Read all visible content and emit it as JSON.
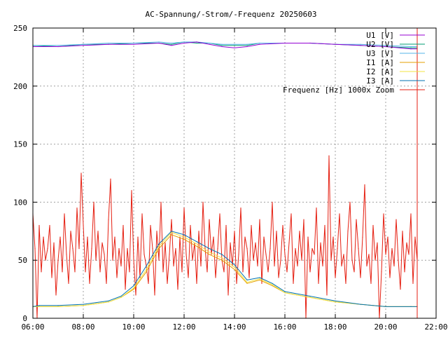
{
  "chart_data": {
    "type": "line",
    "title": "AC-Spannung/-Strom/-Frequenz 20250603",
    "xlabel": "",
    "ylabel": "",
    "xlim": [
      "06:00",
      "22:00"
    ],
    "ylim": [
      0,
      250
    ],
    "x_tick_labels": [
      "06:00",
      "08:00",
      "10:00",
      "12:00",
      "14:00",
      "16:00",
      "18:00",
      "20:00",
      "22:00"
    ],
    "y_tick_labels": [
      "0",
      "50",
      "100",
      "150",
      "200",
      "250"
    ],
    "grid": true,
    "legend_position": "top-right",
    "data_end": "21:15",
    "series": [
      {
        "name": "U1 [V]",
        "color": "#9400d3",
        "x": [
          "06:00",
          "07:00",
          "08:00",
          "09:00",
          "10:00",
          "11:00",
          "11:30",
          "12:00",
          "12:30",
          "13:00",
          "13:30",
          "14:00",
          "14:30",
          "15:00",
          "16:00",
          "17:00",
          "18:00",
          "19:00",
          "20:00",
          "21:00",
          "21:15"
        ],
        "values": [
          234,
          234,
          235,
          236,
          236,
          237,
          235,
          237,
          238,
          236,
          234,
          233,
          234,
          236,
          237,
          237,
          236,
          235,
          234,
          232,
          232
        ]
      },
      {
        "name": "U2 [V]",
        "color": "#009e73",
        "x": [
          "06:00",
          "07:00",
          "08:00",
          "09:00",
          "10:00",
          "11:00",
          "11:30",
          "12:00",
          "12:30",
          "13:00",
          "13:30",
          "14:00",
          "14:30",
          "15:00",
          "16:00",
          "17:00",
          "18:00",
          "19:00",
          "20:00",
          "21:00",
          "21:15"
        ],
        "values": [
          235,
          234,
          236,
          236,
          237,
          237,
          236,
          238,
          237,
          237,
          235,
          235,
          235,
          237,
          237,
          237,
          236,
          235,
          234,
          233,
          233
        ]
      },
      {
        "name": "U3 [V]",
        "color": "#56b4e9",
        "x": [
          "06:00",
          "07:00",
          "08:00",
          "09:00",
          "10:00",
          "11:00",
          "11:30",
          "12:00",
          "12:30",
          "13:00",
          "13:30",
          "14:00",
          "14:30",
          "15:00",
          "16:00",
          "17:00",
          "18:00",
          "19:00",
          "20:00",
          "21:00",
          "21:15"
        ],
        "values": [
          235,
          235,
          236,
          237,
          237,
          238,
          237,
          238,
          238,
          237,
          236,
          236,
          236,
          237,
          237,
          237,
          236,
          236,
          235,
          234,
          234
        ]
      },
      {
        "name": "I1 [A]",
        "color": "#e69f00",
        "x": [
          "06:00",
          "06:15",
          "07:00",
          "08:00",
          "09:00",
          "09:30",
          "10:00",
          "10:30",
          "11:00",
          "11:30",
          "12:00",
          "12:30",
          "13:00",
          "13:30",
          "14:00",
          "14:30",
          "15:00",
          "15:30",
          "16:00",
          "17:00",
          "18:00",
          "19:00",
          "20:00",
          "21:00",
          "21:15"
        ],
        "values": [
          10,
          10,
          10,
          11,
          14,
          18,
          25,
          40,
          60,
          72,
          68,
          62,
          55,
          50,
          42,
          30,
          33,
          28,
          22,
          18,
          14,
          12,
          10,
          10,
          10
        ]
      },
      {
        "name": "I2 [A]",
        "color": "#f0e442",
        "x": [
          "06:00",
          "06:15",
          "07:00",
          "08:00",
          "09:00",
          "09:30",
          "10:00",
          "10:30",
          "11:00",
          "11:30",
          "12:00",
          "12:30",
          "13:00",
          "13:30",
          "14:00",
          "14:30",
          "15:00",
          "15:30",
          "16:00",
          "17:00",
          "18:00",
          "19:00",
          "20:00",
          "21:00",
          "21:15"
        ],
        "values": [
          10,
          10,
          10,
          11,
          14,
          18,
          26,
          42,
          62,
          74,
          70,
          64,
          57,
          52,
          44,
          31,
          34,
          29,
          22,
          18,
          14,
          12,
          10,
          10,
          10
        ]
      },
      {
        "name": "I3 [A]",
        "color": "#0072b2",
        "x": [
          "06:00",
          "06:15",
          "07:00",
          "08:00",
          "09:00",
          "09:30",
          "10:00",
          "10:30",
          "11:00",
          "11:30",
          "12:00",
          "12:30",
          "13:00",
          "13:30",
          "14:00",
          "14:30",
          "15:00",
          "15:30",
          "16:00",
          "17:00",
          "18:00",
          "19:00",
          "20:00",
          "21:00",
          "21:15"
        ],
        "values": [
          10,
          11,
          11,
          12,
          15,
          19,
          28,
          45,
          64,
          75,
          72,
          66,
          60,
          55,
          46,
          33,
          35,
          30,
          23,
          19,
          15,
          12,
          10,
          10,
          10
        ]
      },
      {
        "name": "Frequenz [Hz] 1000x Zoom",
        "color": "#e51e10",
        "x": [
          "06:00",
          "06:05",
          "06:10",
          "06:15",
          "06:20",
          "06:25",
          "06:30",
          "06:35",
          "06:40",
          "06:45",
          "06:50",
          "06:55",
          "07:00",
          "07:05",
          "07:10",
          "07:15",
          "07:20",
          "07:25",
          "07:30",
          "07:35",
          "07:40",
          "07:45",
          "07:50",
          "07:55",
          "08:00",
          "08:05",
          "08:10",
          "08:15",
          "08:20",
          "08:25",
          "08:30",
          "08:35",
          "08:40",
          "08:45",
          "08:50",
          "08:55",
          "09:00",
          "09:05",
          "09:10",
          "09:15",
          "09:20",
          "09:25",
          "09:30",
          "09:35",
          "09:40",
          "09:45",
          "09:50",
          "09:55",
          "10:00",
          "10:05",
          "10:10",
          "10:15",
          "10:20",
          "10:25",
          "10:30",
          "10:35",
          "10:40",
          "10:45",
          "10:50",
          "10:55",
          "11:00",
          "11:05",
          "11:10",
          "11:15",
          "11:20",
          "11:25",
          "11:30",
          "11:35",
          "11:40",
          "11:45",
          "11:50",
          "11:55",
          "12:00",
          "12:05",
          "12:10",
          "12:15",
          "12:20",
          "12:25",
          "12:30",
          "12:35",
          "12:40",
          "12:45",
          "12:50",
          "12:55",
          "13:00",
          "13:05",
          "13:10",
          "13:15",
          "13:20",
          "13:25",
          "13:30",
          "13:35",
          "13:40",
          "13:45",
          "13:50",
          "13:55",
          "14:00",
          "14:05",
          "14:10",
          "14:15",
          "14:20",
          "14:25",
          "14:30",
          "14:35",
          "14:40",
          "14:45",
          "14:50",
          "14:55",
          "15:00",
          "15:05",
          "15:10",
          "15:15",
          "15:20",
          "15:25",
          "15:30",
          "15:35",
          "15:40",
          "15:45",
          "15:50",
          "15:55",
          "16:00",
          "16:05",
          "16:10",
          "16:15",
          "16:20",
          "16:25",
          "16:30",
          "16:35",
          "16:40",
          "16:45",
          "16:50",
          "16:55",
          "17:00",
          "17:05",
          "17:10",
          "17:15",
          "17:20",
          "17:25",
          "17:30",
          "17:35",
          "17:40",
          "17:45",
          "17:50",
          "17:55",
          "18:00",
          "18:05",
          "18:10",
          "18:15",
          "18:20",
          "18:25",
          "18:30",
          "18:35",
          "18:40",
          "18:45",
          "18:50",
          "18:55",
          "19:00",
          "19:05",
          "19:10",
          "19:15",
          "19:20",
          "19:25",
          "19:30",
          "19:35",
          "19:40",
          "19:45",
          "19:50",
          "19:55",
          "20:00",
          "20:05",
          "20:10",
          "20:15",
          "20:20",
          "20:25",
          "20:30",
          "20:35",
          "20:40",
          "20:45",
          "20:50",
          "20:55",
          "21:00",
          "21:05",
          "21:10",
          "21:15"
        ],
        "values": [
          90,
          60,
          0,
          80,
          40,
          70,
          50,
          60,
          80,
          35,
          65,
          20,
          50,
          70,
          40,
          90,
          55,
          30,
          75,
          60,
          40,
          95,
          60,
          125,
          80,
          40,
          70,
          30,
          60,
          100,
          50,
          75,
          40,
          65,
          55,
          30,
          85,
          120,
          50,
          70,
          35,
          60,
          45,
          80,
          25,
          60,
          40,
          110,
          50,
          20,
          70,
          35,
          90,
          55,
          45,
          30,
          80,
          60,
          20,
          75,
          50,
          100,
          40,
          65,
          30,
          55,
          85,
          45,
          60,
          25,
          70,
          40,
          95,
          55,
          35,
          80,
          50,
          65,
          30,
          75,
          45,
          100,
          60,
          40,
          85,
          55,
          70,
          35,
          60,
          90,
          50,
          40,
          80,
          20,
          65,
          45,
          75,
          30,
          55,
          95,
          40,
          70,
          60,
          35,
          80,
          50,
          65,
          45,
          85,
          30,
          70,
          55,
          40,
          60,
          100,
          45,
          75,
          35,
          50,
          80,
          55,
          40,
          65,
          90,
          30,
          60,
          45,
          75,
          50,
          85,
          0,
          70,
          40,
          60,
          55,
          95,
          30,
          65,
          45,
          80,
          20,
          140,
          50,
          70,
          35,
          60,
          90,
          45,
          55,
          30,
          75,
          100,
          50,
          40,
          85,
          60,
          35,
          70,
          115,
          45,
          55,
          30,
          80,
          50,
          65,
          0,
          40,
          90,
          55,
          70,
          35,
          60,
          45,
          85,
          50,
          25,
          75,
          40,
          65,
          55,
          90,
          30,
          70,
          50
        ]
      }
    ]
  }
}
